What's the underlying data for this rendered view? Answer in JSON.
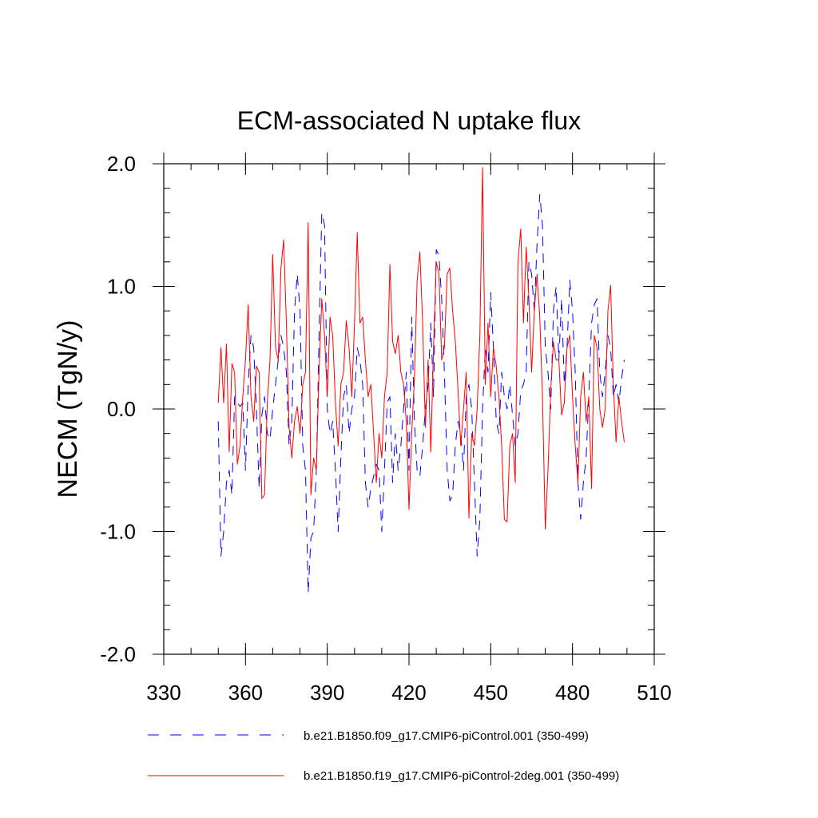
{
  "chart_data": {
    "type": "line",
    "title": "ECM-associated N uptake flux",
    "xlabel": "",
    "ylabel": "NECM  (TgN/y)",
    "xlim": [
      330,
      510
    ],
    "ylim": [
      -2.0,
      2.0
    ],
    "xticks": [
      330,
      360,
      390,
      420,
      450,
      480,
      510
    ],
    "xtick_labels": [
      "330",
      "360",
      "390",
      "420",
      "450",
      "480",
      "510"
    ],
    "yticks": [
      -2.0,
      -1.0,
      0.0,
      1.0,
      2.0
    ],
    "ytick_labels": [
      "-2.0",
      "-1.0",
      "0.0",
      "1.0",
      "2.0"
    ],
    "legend_position": "bottom",
    "x": [
      350,
      351,
      352,
      353,
      354,
      355,
      356,
      357,
      358,
      359,
      360,
      361,
      362,
      363,
      364,
      365,
      366,
      367,
      368,
      369,
      370,
      371,
      372,
      373,
      374,
      375,
      376,
      377,
      378,
      379,
      380,
      381,
      382,
      383,
      384,
      385,
      386,
      387,
      388,
      389,
      390,
      391,
      392,
      393,
      394,
      395,
      396,
      397,
      398,
      399,
      400,
      401,
      402,
      403,
      404,
      405,
      406,
      407,
      408,
      409,
      410,
      411,
      412,
      413,
      414,
      415,
      416,
      417,
      418,
      419,
      420,
      421,
      422,
      423,
      424,
      425,
      426,
      427,
      428,
      429,
      430,
      431,
      432,
      433,
      434,
      435,
      436,
      437,
      438,
      439,
      440,
      441,
      442,
      443,
      444,
      445,
      446,
      447,
      448,
      449,
      450,
      451,
      452,
      453,
      454,
      455,
      456,
      457,
      458,
      459,
      460,
      461,
      462,
      463,
      464,
      465,
      466,
      467,
      468,
      469,
      470,
      471,
      472,
      473,
      474,
      475,
      476,
      477,
      478,
      479,
      480,
      481,
      482,
      483,
      484,
      485,
      486,
      487,
      488,
      489,
      490,
      491,
      492,
      493,
      494,
      495,
      496,
      497,
      498,
      499
    ],
    "series": [
      {
        "name": "b.e21.B1850.f09_g17.CMIP6-piControl.001 (350-499)",
        "color": "#0000ff",
        "style": "dashed",
        "values": [
          -0.1,
          -1.2,
          -1.0,
          -0.6,
          -0.5,
          -0.7,
          0.1,
          0.05,
          0.02,
          0.05,
          -0.5,
          0.2,
          0.6,
          0.5,
          0.0,
          -0.65,
          -0.05,
          0.1,
          -0.2,
          -0.25,
          0.0,
          0.2,
          0.4,
          0.6,
          0.5,
          0.3,
          -0.3,
          -0.1,
          0.8,
          1.1,
          0.8,
          -0.3,
          -0.5,
          -1.5,
          -1.05,
          -1.0,
          -0.5,
          0.6,
          1.6,
          1.5,
          0.0,
          -0.2,
          -0.1,
          -0.5,
          -1.0,
          -0.4,
          0.1,
          0.2,
          -0.2,
          0.0,
          0.1,
          0.5,
          0.4,
          0.2,
          -0.6,
          -0.8,
          -0.65,
          -0.55,
          -0.45,
          -0.5,
          -1.0,
          -0.5,
          0.05,
          0.1,
          -0.6,
          -0.2,
          -0.5,
          -0.3,
          0.0,
          0.3,
          -0.5,
          0.75,
          -0.1,
          -0.5,
          -0.55,
          -0.3,
          0.0,
          0.2,
          0.7,
          0.1,
          1.3,
          1.25,
          0.9,
          0.3,
          -0.5,
          -0.75,
          -0.7,
          -0.3,
          -0.1,
          -0.2,
          -0.5,
          0.1,
          0.2,
          0.0,
          -0.6,
          -1.2,
          -0.9,
          0.0,
          0.5,
          0.3,
          0.95,
          0.5,
          -0.1,
          -0.2,
          0.3,
          0.1,
          0.0,
          0.2,
          -0.05,
          -0.3,
          -0.2,
          0.15,
          0.2,
          0.3,
          1.2,
          1.1,
          0.8,
          1.35,
          1.75,
          1.5,
          0.5,
          0.3,
          0.0,
          0.8,
          1.0,
          0.4,
          0.9,
          0.2,
          0.5,
          1.05,
          0.8,
          0.3,
          -0.6,
          -0.9,
          -0.6,
          -0.4,
          0.1,
          0.7,
          0.85,
          0.9,
          0.3,
          0.1,
          0.3,
          0.6,
          0.5,
          0.1,
          0.2,
          0.05,
          0.25,
          0.4
        ]
      },
      {
        "name": "b.e21.B1850.f19_g17.CMIP6-piControl-2deg.001 (350-499)",
        "color": "#ff0000",
        "style": "solid",
        "values": [
          0.05,
          0.5,
          0.05,
          0.53,
          -0.35,
          0.37,
          0.3,
          -0.45,
          -0.3,
          0.1,
          0.4,
          0.85,
          0.1,
          -0.1,
          0.35,
          0.3,
          -0.73,
          -0.7,
          0.05,
          0.4,
          1.26,
          0.5,
          0.4,
          1.15,
          1.38,
          0.7,
          -0.15,
          -0.4,
          -0.1,
          0.02,
          -0.2,
          0.2,
          0.3,
          1.52,
          -0.7,
          -0.4,
          -0.5,
          0.3,
          0.9,
          0.6,
          0.1,
          0.75,
          0.6,
          0.05,
          -0.3,
          0.2,
          0.3,
          0.72,
          0.5,
          0.1,
          0.7,
          1.44,
          0.7,
          0.75,
          0.4,
          0.1,
          0.2,
          -0.2,
          -0.6,
          -0.2,
          -0.4,
          0.1,
          0.3,
          1.18,
          0.55,
          0.45,
          0.6,
          0.3,
          0.2,
          -0.1,
          -0.82,
          -0.2,
          0.25,
          1.05,
          1.28,
          0.7,
          -0.15,
          0.4,
          -0.35,
          0.5,
          1.2,
          1.1,
          0.4,
          0.5,
          1.1,
          1.15,
          0.8,
          0.55,
          0.15,
          -0.3,
          0.0,
          0.3,
          -0.89,
          -0.2,
          -0.3,
          0.0,
          0.6,
          1.97,
          0.2,
          0.7,
          0.1,
          0.5,
          0.35,
          0.1,
          -0.3,
          -0.9,
          -0.92,
          -0.3,
          -0.2,
          -0.6,
          1.2,
          1.47,
          0.7,
          1.32,
          0.9,
          0.3,
          0.8,
          1.1,
          0.75,
          0.1,
          -0.98,
          -0.5,
          0.15,
          0.55,
          0.4,
          0.4,
          -0.05,
          0.05,
          0.5,
          0.6,
          0.1,
          -0.3,
          -0.6,
          0.1,
          0.3,
          -0.1,
          0.1,
          -0.65,
          0.6,
          0.5,
          0.0,
          -0.15,
          0.0,
          0.8,
          1.01,
          0.2,
          -0.27,
          0.1,
          -0.1,
          -0.27
        ]
      }
    ]
  }
}
